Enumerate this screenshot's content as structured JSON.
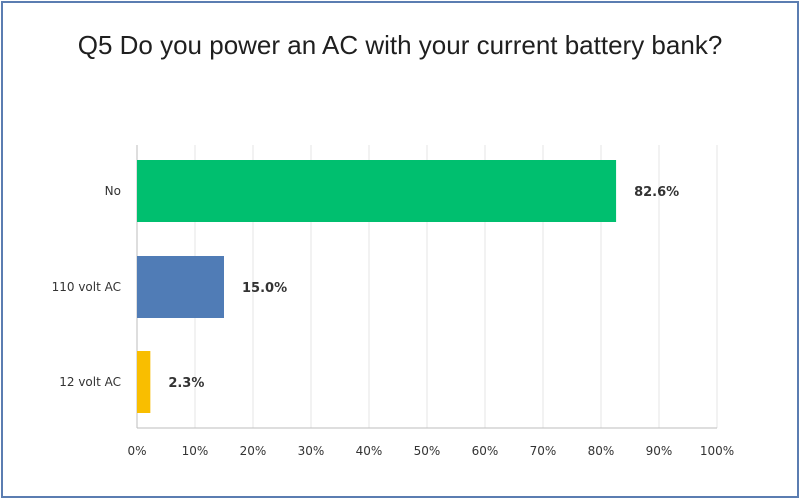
{
  "chart_data": {
    "type": "bar",
    "orientation": "horizontal",
    "title": "Q5 Do you power an AC with your current battery bank?",
    "categories": [
      "No",
      "110 volt AC",
      "12 volt AC"
    ],
    "values": [
      82.6,
      15.0,
      2.3
    ],
    "value_labels": [
      "82.6%",
      "15.0%",
      "2.3%"
    ],
    "colors": [
      "#00bf6f",
      "#507cb6",
      "#f9be00"
    ],
    "xlim": [
      0,
      100
    ],
    "x_ticks": [
      "0%",
      "10%",
      "20%",
      "30%",
      "40%",
      "50%",
      "60%",
      "70%",
      "80%",
      "90%",
      "100%"
    ],
    "grid": true,
    "legend": "none",
    "border_color": "#5b7db1",
    "grid_color": "#e6e6e6"
  }
}
